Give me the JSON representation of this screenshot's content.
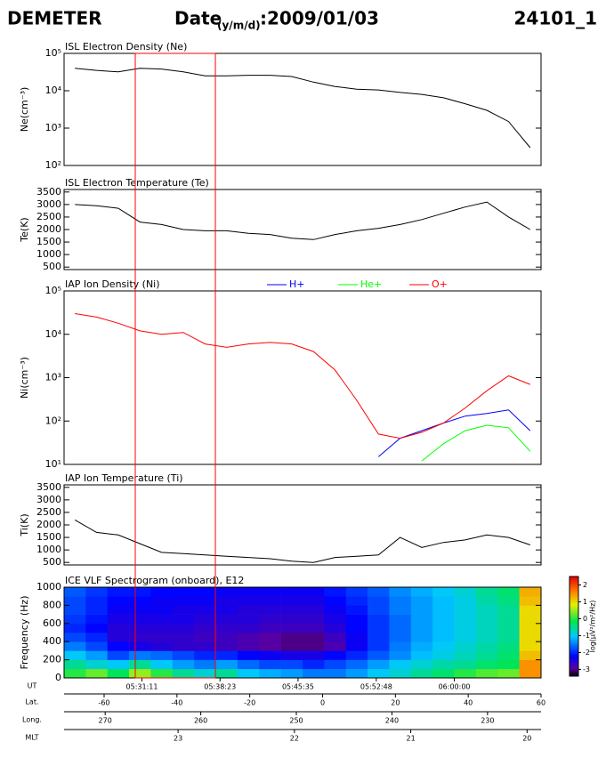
{
  "header": {
    "instrument": "DEMETER",
    "date_label": "Date",
    "date_sub": "(y/m/d)",
    "date": ":2009/01/03",
    "orbit": "24101_1"
  },
  "chart_data": [
    {
      "type": "line",
      "title": "ISL Electron Density (Ne)",
      "ylabel": "Ne(cm⁻³)",
      "log_y": true,
      "xlim": [
        "05:24:00",
        "06:08:00"
      ],
      "ylim": [
        100,
        100000
      ],
      "yticks": [
        {
          "value": 100,
          "label": "10²"
        },
        {
          "value": 1000,
          "label": "10³"
        },
        {
          "value": 10000,
          "label": "10⁴"
        },
        {
          "value": 100000,
          "label": "10⁵"
        }
      ],
      "x": [
        "05:25:00",
        "05:27:00",
        "05:29:00",
        "05:31:00",
        "05:33:00",
        "05:35:00",
        "05:37:00",
        "05:39:00",
        "05:41:00",
        "05:43:00",
        "05:45:00",
        "05:47:00",
        "05:49:00",
        "05:51:00",
        "05:53:00",
        "05:55:00",
        "05:57:00",
        "05:59:00",
        "06:01:00",
        "06:03:00",
        "06:05:00",
        "06:07:00"
      ],
      "series": [
        {
          "color": "#000000",
          "values": [
            40000,
            35000,
            32000,
            40000,
            38000,
            32000,
            25000,
            25000,
            26000,
            26000,
            24000,
            17000,
            13000,
            11000,
            10500,
            9000,
            8000,
            6500,
            4500,
            3000,
            1500,
            300
          ]
        }
      ]
    },
    {
      "type": "line",
      "title": "ISL Electron Temperature (Te)",
      "ylabel": "Te(K)",
      "log_y": false,
      "xlim": [
        "05:24:00",
        "06:08:00"
      ],
      "ylim": [
        400,
        3600
      ],
      "yticks": [
        500,
        1000,
        1500,
        2000,
        2500,
        3000,
        3500
      ],
      "x": [
        "05:25:00",
        "05:27:00",
        "05:29:00",
        "05:31:00",
        "05:33:00",
        "05:35:00",
        "05:37:00",
        "05:39:00",
        "05:41:00",
        "05:43:00",
        "05:45:00",
        "05:47:00",
        "05:49:00",
        "05:51:00",
        "05:53:00",
        "05:55:00",
        "05:57:00",
        "05:59:00",
        "06:01:00",
        "06:03:00",
        "06:05:00",
        "06:07:00"
      ],
      "series": [
        {
          "color": "#000000",
          "values": [
            3000,
            2950,
            2850,
            2300,
            2200,
            2000,
            1950,
            1950,
            1850,
            1800,
            1650,
            1600,
            1800,
            1950,
            2050,
            2200,
            2400,
            2650,
            2900,
            3100,
            2500,
            2000
          ]
        }
      ]
    },
    {
      "type": "line",
      "title": "IAP Ion Density (Ni)",
      "ylabel": "Ni(cm⁻³)",
      "log_y": true,
      "legend": "top",
      "xlim": [
        "05:24:00",
        "06:08:00"
      ],
      "ylim": [
        10,
        100000
      ],
      "yticks": [
        {
          "value": 10,
          "label": "10¹"
        },
        {
          "value": 100,
          "label": "10²"
        },
        {
          "value": 1000,
          "label": "10³"
        },
        {
          "value": 10000,
          "label": "10⁴"
        },
        {
          "value": 100000,
          "label": "10⁵"
        }
      ],
      "x": [
        "05:25:00",
        "05:27:00",
        "05:29:00",
        "05:31:00",
        "05:33:00",
        "05:35:00",
        "05:37:00",
        "05:39:00",
        "05:41:00",
        "05:43:00",
        "05:45:00",
        "05:47:00",
        "05:49:00",
        "05:51:00",
        "05:53:00",
        "05:55:00",
        "05:57:00",
        "05:59:00",
        "06:01:00",
        "06:03:00",
        "06:05:00",
        "06:07:00"
      ],
      "series": [
        {
          "name": "H+",
          "color": "#0000ff",
          "values": [
            null,
            null,
            null,
            null,
            null,
            null,
            null,
            null,
            null,
            null,
            null,
            null,
            null,
            null,
            15,
            40,
            60,
            90,
            130,
            150,
            180,
            60
          ]
        },
        {
          "name": "He+",
          "color": "#00ff00",
          "values": [
            null,
            null,
            null,
            null,
            null,
            null,
            null,
            null,
            null,
            null,
            null,
            null,
            null,
            null,
            null,
            null,
            12,
            30,
            60,
            80,
            70,
            20
          ]
        },
        {
          "name": "O+",
          "color": "#ff0000",
          "values": [
            30000,
            25000,
            18000,
            12000,
            10000,
            11000,
            6000,
            5000,
            6000,
            6500,
            6000,
            4000,
            1500,
            300,
            50,
            40,
            55,
            90,
            200,
            500,
            1100,
            700
          ]
        }
      ]
    },
    {
      "type": "line",
      "title": "IAP Ion Temperature (Ti)",
      "ylabel": "Ti(K)",
      "log_y": false,
      "xlim": [
        "05:24:00",
        "06:08:00"
      ],
      "ylim": [
        400,
        3600
      ],
      "yticks": [
        500,
        1000,
        1500,
        2000,
        2500,
        3000,
        3500
      ],
      "x": [
        "05:25:00",
        "05:27:00",
        "05:29:00",
        "05:31:00",
        "05:33:00",
        "05:35:00",
        "05:37:00",
        "05:39:00",
        "05:41:00",
        "05:43:00",
        "05:45:00",
        "05:47:00",
        "05:49:00",
        "05:51:00",
        "05:53:00",
        "05:55:00",
        "05:57:00",
        "05:59:00",
        "06:01:00",
        "06:03:00",
        "06:05:00",
        "06:07:00"
      ],
      "series": [
        {
          "color": "#000000",
          "values": [
            2200,
            1700,
            1600,
            1250,
            900,
            850,
            800,
            750,
            700,
            650,
            550,
            500,
            700,
            750,
            800,
            1500,
            1100,
            1300,
            1400,
            1600,
            1500,
            1200
          ]
        }
      ]
    },
    {
      "type": "heatmap",
      "title": "ICE VLF Spectrogram (onboard), E12",
      "ylabel": "Frequency (Hz)",
      "log_y": false,
      "xlim": [
        "05:24:00",
        "06:08:00"
      ],
      "ylim": [
        0,
        1000
      ],
      "yticks": [
        0,
        200,
        400,
        600,
        800,
        1000
      ],
      "xbins": [
        "05:24:00",
        "05:26:00",
        "05:28:00",
        "05:30:00",
        "05:32:00",
        "05:34:00",
        "05:36:00",
        "05:38:00",
        "05:40:00",
        "05:42:00",
        "05:44:00",
        "05:46:00",
        "05:48:00",
        "05:50:00",
        "05:52:00",
        "05:54:00",
        "05:56:00",
        "05:58:00",
        "06:00:00",
        "06:02:00",
        "06:04:00",
        "06:06:00",
        "06:08:00"
      ],
      "ybins": [
        0,
        100,
        200,
        300,
        400,
        500,
        600,
        700,
        800,
        900,
        1000
      ],
      "z": [
        [
          0,
          0.3,
          -0.2,
          0.5,
          0,
          -0.5,
          -0.8,
          -0.5,
          -1,
          -1.2,
          -1.3,
          -1.5,
          -1.5,
          -1.3,
          -1,
          -0.8,
          -0.5,
          -0.3,
          0,
          0.2,
          0.3,
          1.5
        ],
        [
          -0.5,
          -0.8,
          -1,
          -0.5,
          -1,
          -1.3,
          -1.5,
          -1.3,
          -1.6,
          -1.8,
          -1.8,
          -2,
          -1.8,
          -1.6,
          -1.3,
          -1,
          -0.8,
          -0.6,
          -0.5,
          -0.3,
          -0.2,
          1.5
        ],
        [
          -1,
          -1.3,
          -1.8,
          -1.5,
          -1.6,
          -1.8,
          -2,
          -2,
          -2.2,
          -2.3,
          -2.4,
          -2.4,
          -2.2,
          -2,
          -1.7,
          -1.4,
          -1.1,
          -0.9,
          -0.7,
          -0.5,
          -0.3,
          1.2
        ],
        [
          -1.5,
          -1.8,
          -2.2,
          -2.4,
          -2.5,
          -2.6,
          -2.6,
          -2.7,
          -2.8,
          -2.9,
          -3,
          -3,
          -2.8,
          -2.3,
          -1.9,
          -1.5,
          -1.2,
          -1,
          -0.8,
          -0.6,
          -0.4,
          1
        ],
        [
          -1.8,
          -2,
          -2.5,
          -2.6,
          -2.6,
          -2.6,
          -2.7,
          -2.7,
          -2.8,
          -2.9,
          -3,
          -3,
          -2.7,
          -2.3,
          -1.9,
          -1.6,
          -1.3,
          -1.1,
          -0.9,
          -0.7,
          -0.5,
          1
        ],
        [
          -2,
          -2.2,
          -2.5,
          -2.5,
          -2.5,
          -2.5,
          -2.6,
          -2.6,
          -2.6,
          -2.7,
          -2.7,
          -2.7,
          -2.5,
          -2.2,
          -1.9,
          -1.6,
          -1.3,
          -1.1,
          -0.9,
          -0.7,
          -0.5,
          1
        ],
        [
          -1.9,
          -2.1,
          -2.4,
          -2.4,
          -2.4,
          -2.4,
          -2.5,
          -2.5,
          -2.5,
          -2.6,
          -2.6,
          -2.6,
          -2.4,
          -2.2,
          -1.9,
          -1.6,
          -1.3,
          -1.1,
          -0.9,
          -0.7,
          -0.5,
          1
        ],
        [
          -1.8,
          -2,
          -2.3,
          -2.3,
          -2.3,
          -2.4,
          -2.4,
          -2.4,
          -2.5,
          -2.5,
          -2.5,
          -2.5,
          -2.3,
          -2.1,
          -1.8,
          -1.5,
          -1.3,
          -1.1,
          -0.9,
          -0.7,
          -0.5,
          1
        ],
        [
          -1.8,
          -2,
          -2.2,
          -2.2,
          -2.3,
          -2.3,
          -2.3,
          -2.4,
          -2.4,
          -2.4,
          -2.4,
          -2.4,
          -2.2,
          -2,
          -1.8,
          -1.5,
          -1.3,
          -1.1,
          -0.9,
          -0.6,
          -0.4,
          1.2
        ],
        [
          -1.7,
          -1.9,
          -2.1,
          -2.1,
          -2.2,
          -2.2,
          -2.2,
          -2.3,
          -2.3,
          -2.3,
          -2.3,
          -2.3,
          -2.1,
          -1.9,
          -1.7,
          -1.4,
          -1.2,
          -1,
          -0.8,
          -0.5,
          -0.3,
          1.3
        ]
      ],
      "zlim": [
        -3.4,
        2.5
      ],
      "zticks": [
        2,
        1,
        0,
        -1,
        -2,
        -3
      ],
      "colorbar_label": "log(μV²/m²/Hz)"
    }
  ],
  "rulers": [
    {
      "label": "UT",
      "xlim": [
        "05:24:00",
        "06:08:00"
      ],
      "xticks": [
        "05:31:11",
        "05:38:23",
        "05:45:35",
        "05:52:48",
        "06:00:00"
      ]
    },
    {
      "label": "Lat.",
      "xlim": [
        -71,
        60
      ],
      "xticks": [
        -60,
        -40,
        -20,
        0,
        20,
        40,
        60
      ]
    },
    {
      "label": "Long.",
      "xlim": [
        274.3,
        224.4
      ],
      "xticks": [
        270,
        260,
        250,
        240,
        230
      ]
    },
    {
      "label": "MLT",
      "xlim": [
        23.98,
        19.88
      ],
      "xticks": [
        23,
        22,
        21,
        20
      ]
    }
  ]
}
